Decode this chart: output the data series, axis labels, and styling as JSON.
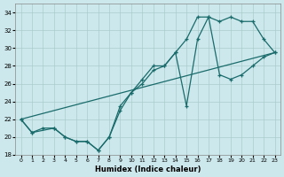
{
  "xlabel": "Humidex (Indice chaleur)",
  "xlim": [
    -0.5,
    23.5
  ],
  "ylim": [
    18,
    35
  ],
  "yticks": [
    18,
    20,
    22,
    24,
    26,
    28,
    30,
    32,
    34
  ],
  "xticks": [
    0,
    1,
    2,
    3,
    4,
    5,
    6,
    7,
    8,
    9,
    10,
    11,
    12,
    13,
    14,
    15,
    16,
    17,
    18,
    19,
    20,
    21,
    22,
    23
  ],
  "bg_color": "#cce8ec",
  "grid_color": "#aacccc",
  "line_color": "#1a6b6b",
  "line1_x": [
    0,
    1,
    2,
    3,
    4,
    5,
    6,
    7,
    8,
    9,
    10,
    11,
    12,
    13,
    14,
    15,
    16,
    17,
    18,
    19,
    20,
    21,
    22,
    23
  ],
  "line1_y": [
    22,
    20.5,
    21,
    21,
    20,
    19.5,
    19.5,
    18.5,
    20,
    23,
    25,
    26,
    27.5,
    28,
    29.5,
    31,
    33.5,
    33.5,
    33,
    33.5,
    33,
    33,
    31,
    29.5
  ],
  "line2_x": [
    0,
    1,
    3,
    4,
    5,
    6,
    7,
    8,
    9,
    10,
    11,
    12,
    13,
    14,
    15,
    16,
    17,
    18,
    19,
    20,
    21,
    22,
    23
  ],
  "line2_y": [
    22,
    20.5,
    21,
    20,
    19.5,
    19.5,
    18.5,
    20,
    23.5,
    25,
    26.5,
    28,
    28,
    29.5,
    23.5,
    31,
    33.5,
    27,
    26.5,
    27,
    28,
    29,
    29.5
  ],
  "line3_x": [
    0,
    23
  ],
  "line3_y": [
    22,
    29.5
  ]
}
